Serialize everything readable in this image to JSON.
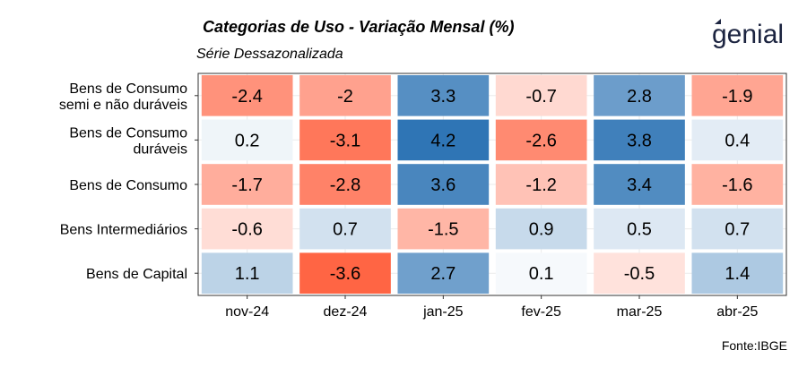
{
  "header": {
    "title": "Categorias de Uso - Variação Mensal (%)",
    "subtitle": "Série Dessazonalizada",
    "logo_text": "genial"
  },
  "footer": {
    "source": "Fonte:IBGE"
  },
  "colors": {
    "negative": "#ff4f2a",
    "positive": "#2f75b5",
    "neutral": "#ffffff",
    "panel_border": "#333333",
    "grid": "#ebebeb",
    "logo": "#1c2440"
  },
  "chart_data": {
    "type": "heatmap",
    "title": "Categorias de Uso - Variação Mensal (%)",
    "subtitle": "Série Dessazonalizada",
    "x": [
      "nov-24",
      "dez-24",
      "jan-25",
      "fev-25",
      "mar-25",
      "abr-25"
    ],
    "y": [
      "Bens de Consumo\nsemi e não duráveis",
      "Bens de Consumo\nduráveis",
      "Bens de Consumo",
      "Bens Intermediários",
      "Bens de Capital"
    ],
    "values": [
      [
        -2.4,
        -2,
        3.3,
        -0.7,
        2.8,
        -1.9
      ],
      [
        0.2,
        -3.1,
        4.2,
        -2.6,
        3.8,
        0.4
      ],
      [
        -1.7,
        -2.8,
        3.6,
        -1.2,
        3.4,
        -1.6
      ],
      [
        -0.6,
        0.7,
        -1.5,
        0.9,
        0.5,
        0.7
      ],
      [
        1.1,
        -3.6,
        2.7,
        0.1,
        -0.5,
        1.4
      ]
    ],
    "value_labels": [
      [
        "-2.4",
        "-2",
        "3.3",
        "-0.7",
        "2.8",
        "-1.9"
      ],
      [
        "0.2",
        "-3.1",
        "4.2",
        "-2.6",
        "3.8",
        "0.4"
      ],
      [
        "-1.7",
        "-2.8",
        "3.6",
        "-1.2",
        "3.4",
        "-1.6"
      ],
      [
        "-0.6",
        "0.7",
        "-1.5",
        "0.9",
        "0.5",
        "0.7"
      ],
      [
        "1.1",
        "-3.6",
        "2.7",
        "0.1",
        "-0.5",
        "1.4"
      ]
    ],
    "color_scale": {
      "min": -4.2,
      "max": 4.2,
      "low": "#ff4f2a",
      "mid": "#ffffff",
      "high": "#2f75b5"
    },
    "grid": true,
    "legend": "none"
  }
}
